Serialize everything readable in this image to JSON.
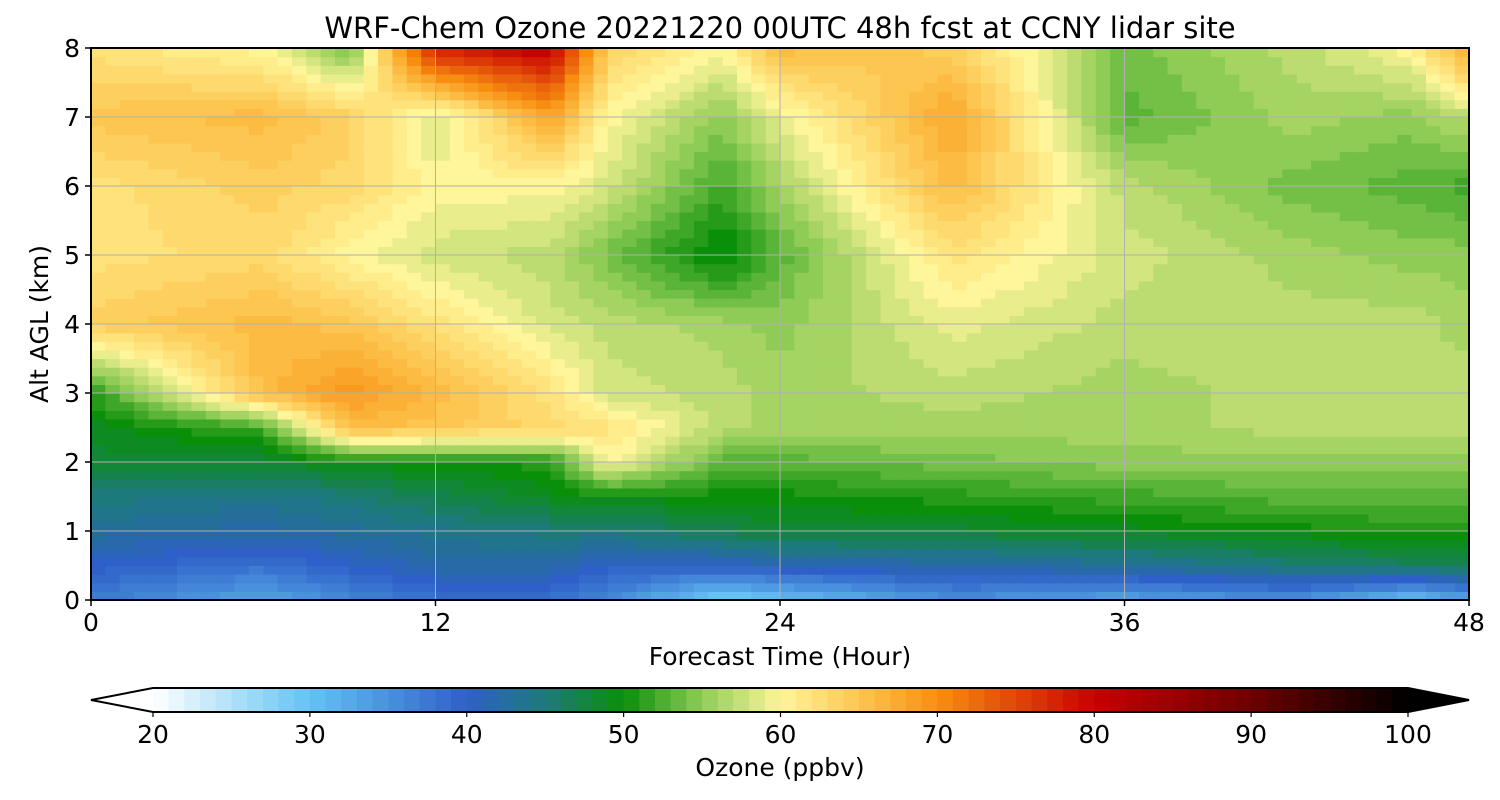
{
  "chart_data": {
    "type": "heatmap",
    "title": "WRF-Chem Ozone  20221220 00UTC 48h fcst at CCNY lidar site",
    "xlabel": "Forecast Time (Hour)",
    "ylabel": "Alt AGL (km)",
    "xlim": [
      0,
      48
    ],
    "ylim": [
      0,
      8
    ],
    "xticks": [
      0,
      12,
      24,
      36,
      48
    ],
    "yticks": [
      0,
      1,
      2,
      3,
      4,
      5,
      6,
      7,
      8
    ],
    "grid": true,
    "x_hours": [
      0,
      6,
      9,
      12,
      16,
      18,
      22,
      24,
      30,
      36,
      42,
      46,
      48
    ],
    "y_km": [
      0,
      0.5,
      1,
      1.5,
      2,
      2.5,
      3,
      4,
      5,
      6,
      7,
      8
    ],
    "ozone_ppbv": [
      [
        37,
        33,
        36,
        38,
        38,
        36,
        28,
        30,
        35,
        33,
        35,
        30,
        33
      ],
      [
        40,
        38,
        40,
        42,
        42,
        40,
        40,
        41,
        42,
        43,
        45,
        46,
        47
      ],
      [
        43,
        42,
        43,
        44,
        45,
        45,
        47,
        48,
        48,
        49,
        50,
        51,
        51
      ],
      [
        45,
        44,
        45,
        47,
        49,
        50,
        50,
        50,
        51,
        52,
        53,
        53,
        53
      ],
      [
        48,
        48,
        50,
        50,
        51,
        60,
        53,
        53,
        54,
        55,
        55,
        55,
        55
      ],
      [
        49,
        52,
        66,
        65,
        63,
        62,
        57,
        56,
        56,
        56,
        57,
        57,
        57
      ],
      [
        51,
        66,
        69,
        66,
        62,
        58,
        57,
        56,
        57,
        56,
        57,
        57,
        57
      ],
      [
        64,
        66,
        65,
        62,
        58,
        57,
        56,
        55,
        59,
        57,
        57,
        57,
        56
      ],
      [
        62,
        63,
        60,
        58,
        57,
        54,
        49,
        53,
        62,
        58,
        56,
        55,
        55
      ],
      [
        62,
        64,
        63,
        60,
        60,
        58,
        52,
        56,
        66,
        57,
        54,
        53,
        52
      ],
      [
        65,
        66,
        64,
        58,
        68,
        60,
        55,
        59,
        68,
        53,
        56,
        55,
        57
      ],
      [
        62,
        60,
        54,
        78,
        81,
        64,
        60,
        66,
        64,
        54,
        57,
        60,
        68
      ]
    ],
    "colorbar": {
      "label": "Ozone  (ppbv)",
      "min": 20,
      "max": 100,
      "ticks": [
        20,
        30,
        40,
        50,
        60,
        70,
        80,
        90,
        100
      ],
      "extend": "both",
      "stops": [
        {
          "v": 20,
          "c": "#ffffff"
        },
        {
          "v": 30,
          "c": "#63c3f4"
        },
        {
          "v": 40,
          "c": "#2f5fc8"
        },
        {
          "v": 45,
          "c": "#1d7a7a"
        },
        {
          "v": 50,
          "c": "#0a8f0a"
        },
        {
          "v": 55,
          "c": "#8fcc55"
        },
        {
          "v": 60,
          "c": "#fff59a"
        },
        {
          "v": 65,
          "c": "#fdc650"
        },
        {
          "v": 70,
          "c": "#f88e10"
        },
        {
          "v": 80,
          "c": "#c80000"
        },
        {
          "v": 90,
          "c": "#6d0000"
        },
        {
          "v": 100,
          "c": "#000000"
        }
      ]
    }
  }
}
